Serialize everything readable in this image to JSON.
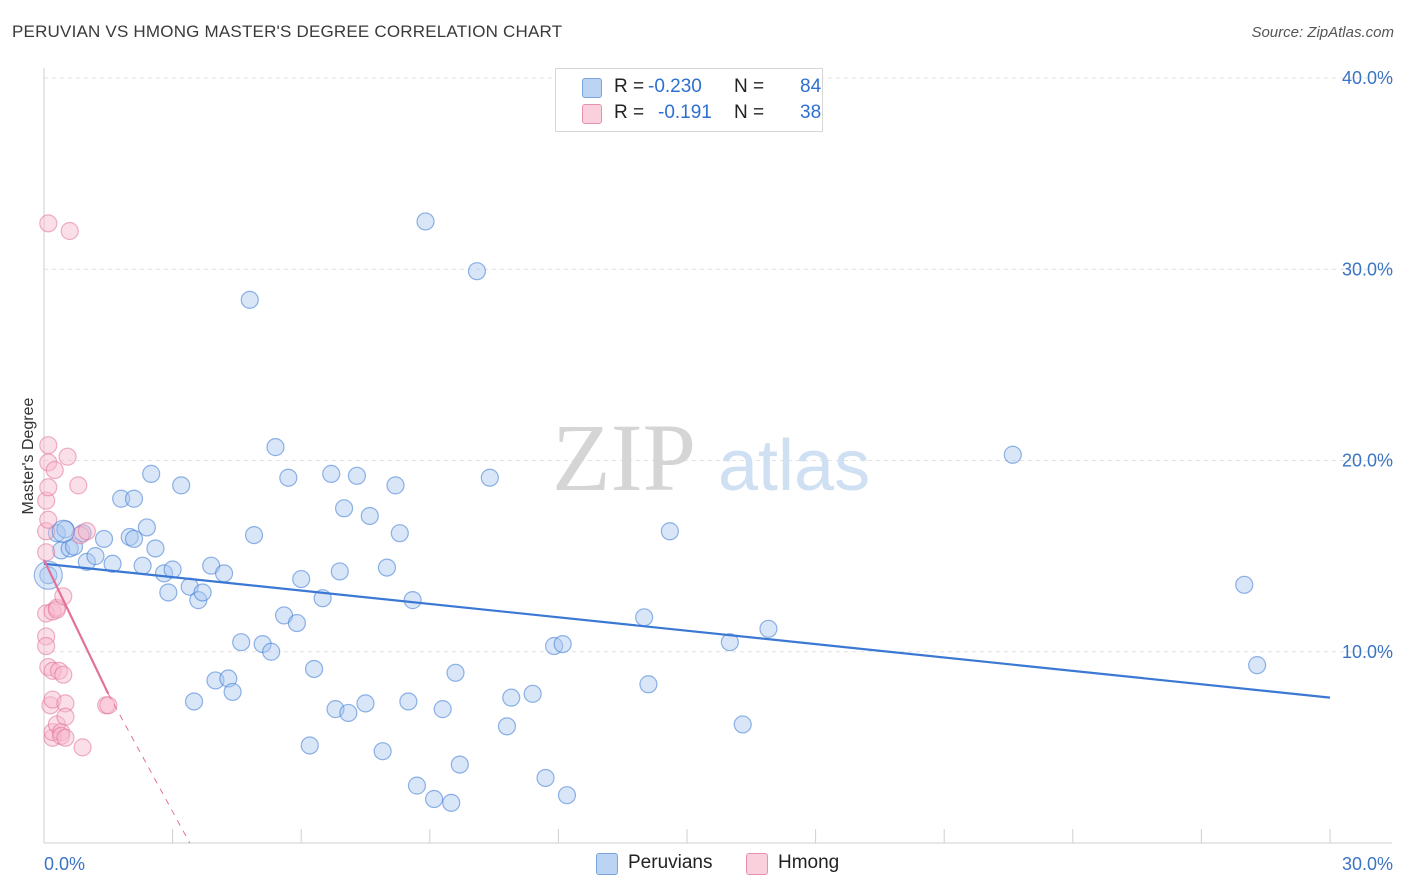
{
  "title": "PERUVIAN VS HMONG MASTER'S DEGREE CORRELATION CHART",
  "source": "Source: ZipAtlas.com",
  "watermark": {
    "zip": "ZIP",
    "atlas": "atlas"
  },
  "legend": {
    "rows": [
      {
        "r_label": "R =",
        "r_value": "-0.230",
        "n_label": "N =",
        "n_value": "84",
        "color": "#a9c8f0"
      },
      {
        "r_label": "R =",
        "r_value": "-0.191",
        "n_label": "N =",
        "n_value": "38",
        "color": "#f7b8cb"
      }
    ]
  },
  "bottom_legend": [
    {
      "label": "Peruvians",
      "color": "#a9c8f0"
    },
    {
      "label": "Hmong",
      "color": "#f7b8cb"
    }
  ],
  "chart_data": {
    "type": "scatter",
    "title": "PERUVIAN VS HMONG MASTER'S DEGREE CORRELATION CHART",
    "xlabel": "",
    "ylabel": "Master's Degree",
    "xlim": [
      0,
      30
    ],
    "ylim": [
      0,
      40
    ],
    "x_tick_labels": [
      {
        "value": 0,
        "label": "0.0%"
      },
      {
        "value": 30,
        "label": "30.0%"
      }
    ],
    "y_tick_labels": [
      {
        "value": 10,
        "label": "10.0%"
      },
      {
        "value": 20,
        "label": "20.0%"
      },
      {
        "value": 30,
        "label": "30.0%"
      },
      {
        "value": 40,
        "label": "40.0%"
      }
    ],
    "series": [
      {
        "name": "Peruvians",
        "color": "#3b78d4",
        "fill": "#a9c8f0",
        "trend": {
          "x": [
            0,
            30
          ],
          "y": [
            14.6,
            7.6
          ]
        },
        "points": [
          [
            0.1,
            14.0
          ],
          [
            0.3,
            16.2
          ],
          [
            0.4,
            15.3
          ],
          [
            0.5,
            16.4
          ],
          [
            0.6,
            15.4
          ],
          [
            0.7,
            15.5
          ],
          [
            0.9,
            16.2
          ],
          [
            1.0,
            14.7
          ],
          [
            1.2,
            15.0
          ],
          [
            1.4,
            15.9
          ],
          [
            1.6,
            14.6
          ],
          [
            1.8,
            18.0
          ],
          [
            2.0,
            16.0
          ],
          [
            2.1,
            15.9
          ],
          [
            2.1,
            18.0
          ],
          [
            2.3,
            14.5
          ],
          [
            2.4,
            16.5
          ],
          [
            2.5,
            19.3
          ],
          [
            2.6,
            15.4
          ],
          [
            2.8,
            14.1
          ],
          [
            2.9,
            13.1
          ],
          [
            3.0,
            14.3
          ],
          [
            3.2,
            18.7
          ],
          [
            3.4,
            13.4
          ],
          [
            3.5,
            7.4
          ],
          [
            3.6,
            12.7
          ],
          [
            3.7,
            13.1
          ],
          [
            3.9,
            14.5
          ],
          [
            4.0,
            8.5
          ],
          [
            4.2,
            14.1
          ],
          [
            4.3,
            8.6
          ],
          [
            4.4,
            7.9
          ],
          [
            4.6,
            10.5
          ],
          [
            4.8,
            28.4
          ],
          [
            4.9,
            16.1
          ],
          [
            5.1,
            10.4
          ],
          [
            5.3,
            10.0
          ],
          [
            5.4,
            20.7
          ],
          [
            5.6,
            11.9
          ],
          [
            5.7,
            19.1
          ],
          [
            5.9,
            11.5
          ],
          [
            6.0,
            13.8
          ],
          [
            6.2,
            5.1
          ],
          [
            6.3,
            9.1
          ],
          [
            6.5,
            12.8
          ],
          [
            6.7,
            19.3
          ],
          [
            6.8,
            7.0
          ],
          [
            6.9,
            14.2
          ],
          [
            7.0,
            17.5
          ],
          [
            7.1,
            6.8
          ],
          [
            7.3,
            19.2
          ],
          [
            7.5,
            7.3
          ],
          [
            7.6,
            17.1
          ],
          [
            7.9,
            4.8
          ],
          [
            8.0,
            14.4
          ],
          [
            8.2,
            18.7
          ],
          [
            8.3,
            16.2
          ],
          [
            8.5,
            7.4
          ],
          [
            8.6,
            12.7
          ],
          [
            8.7,
            3.0
          ],
          [
            8.9,
            32.5
          ],
          [
            9.1,
            2.3
          ],
          [
            9.3,
            7.0
          ],
          [
            9.5,
            2.1
          ],
          [
            9.6,
            8.9
          ],
          [
            9.7,
            4.1
          ],
          [
            10.1,
            29.9
          ],
          [
            10.4,
            19.1
          ],
          [
            10.8,
            6.1
          ],
          [
            10.9,
            7.6
          ],
          [
            11.4,
            7.8
          ],
          [
            11.7,
            3.4
          ],
          [
            11.9,
            10.3
          ],
          [
            12.1,
            10.4
          ],
          [
            12.2,
            2.5
          ],
          [
            14.0,
            11.8
          ],
          [
            14.1,
            8.3
          ],
          [
            14.6,
            16.3
          ],
          [
            16.0,
            10.5
          ],
          [
            16.3,
            6.2
          ],
          [
            16.9,
            11.2
          ],
          [
            22.6,
            20.3
          ],
          [
            28.0,
            13.5
          ],
          [
            28.3,
            9.3
          ]
        ]
      },
      {
        "name": "Hmong",
        "color": "#e2719a",
        "fill": "#f7b8cb",
        "trend": {
          "x": [
            0,
            1.5
          ],
          "y": [
            14.8,
            7.8
          ]
        },
        "trend_dashed": {
          "x": [
            1.5,
            3.4
          ],
          "y": [
            7.8,
            0
          ]
        },
        "points": [
          [
            0.05,
            15.2
          ],
          [
            0.05,
            16.3
          ],
          [
            0.05,
            17.9
          ],
          [
            0.05,
            12.0
          ],
          [
            0.05,
            10.8
          ],
          [
            0.05,
            10.3
          ],
          [
            0.1,
            32.4
          ],
          [
            0.1,
            20.8
          ],
          [
            0.1,
            19.9
          ],
          [
            0.1,
            18.6
          ],
          [
            0.1,
            16.9
          ],
          [
            0.1,
            9.2
          ],
          [
            0.15,
            7.2
          ],
          [
            0.2,
            5.5
          ],
          [
            0.2,
            5.8
          ],
          [
            0.2,
            7.5
          ],
          [
            0.2,
            9.0
          ],
          [
            0.2,
            12.1
          ],
          [
            0.25,
            19.5
          ],
          [
            0.3,
            12.3
          ],
          [
            0.3,
            12.2
          ],
          [
            0.3,
            6.2
          ],
          [
            0.35,
            9.0
          ],
          [
            0.4,
            5.8
          ],
          [
            0.4,
            5.6
          ],
          [
            0.45,
            8.8
          ],
          [
            0.45,
            12.9
          ],
          [
            0.5,
            7.3
          ],
          [
            0.5,
            6.6
          ],
          [
            0.5,
            5.5
          ],
          [
            0.55,
            20.2
          ],
          [
            0.6,
            32.0
          ],
          [
            0.8,
            18.7
          ],
          [
            0.85,
            16.1
          ],
          [
            0.9,
            5.0
          ],
          [
            1.0,
            16.3
          ],
          [
            1.45,
            7.2
          ],
          [
            1.5,
            7.2
          ]
        ]
      }
    ]
  }
}
